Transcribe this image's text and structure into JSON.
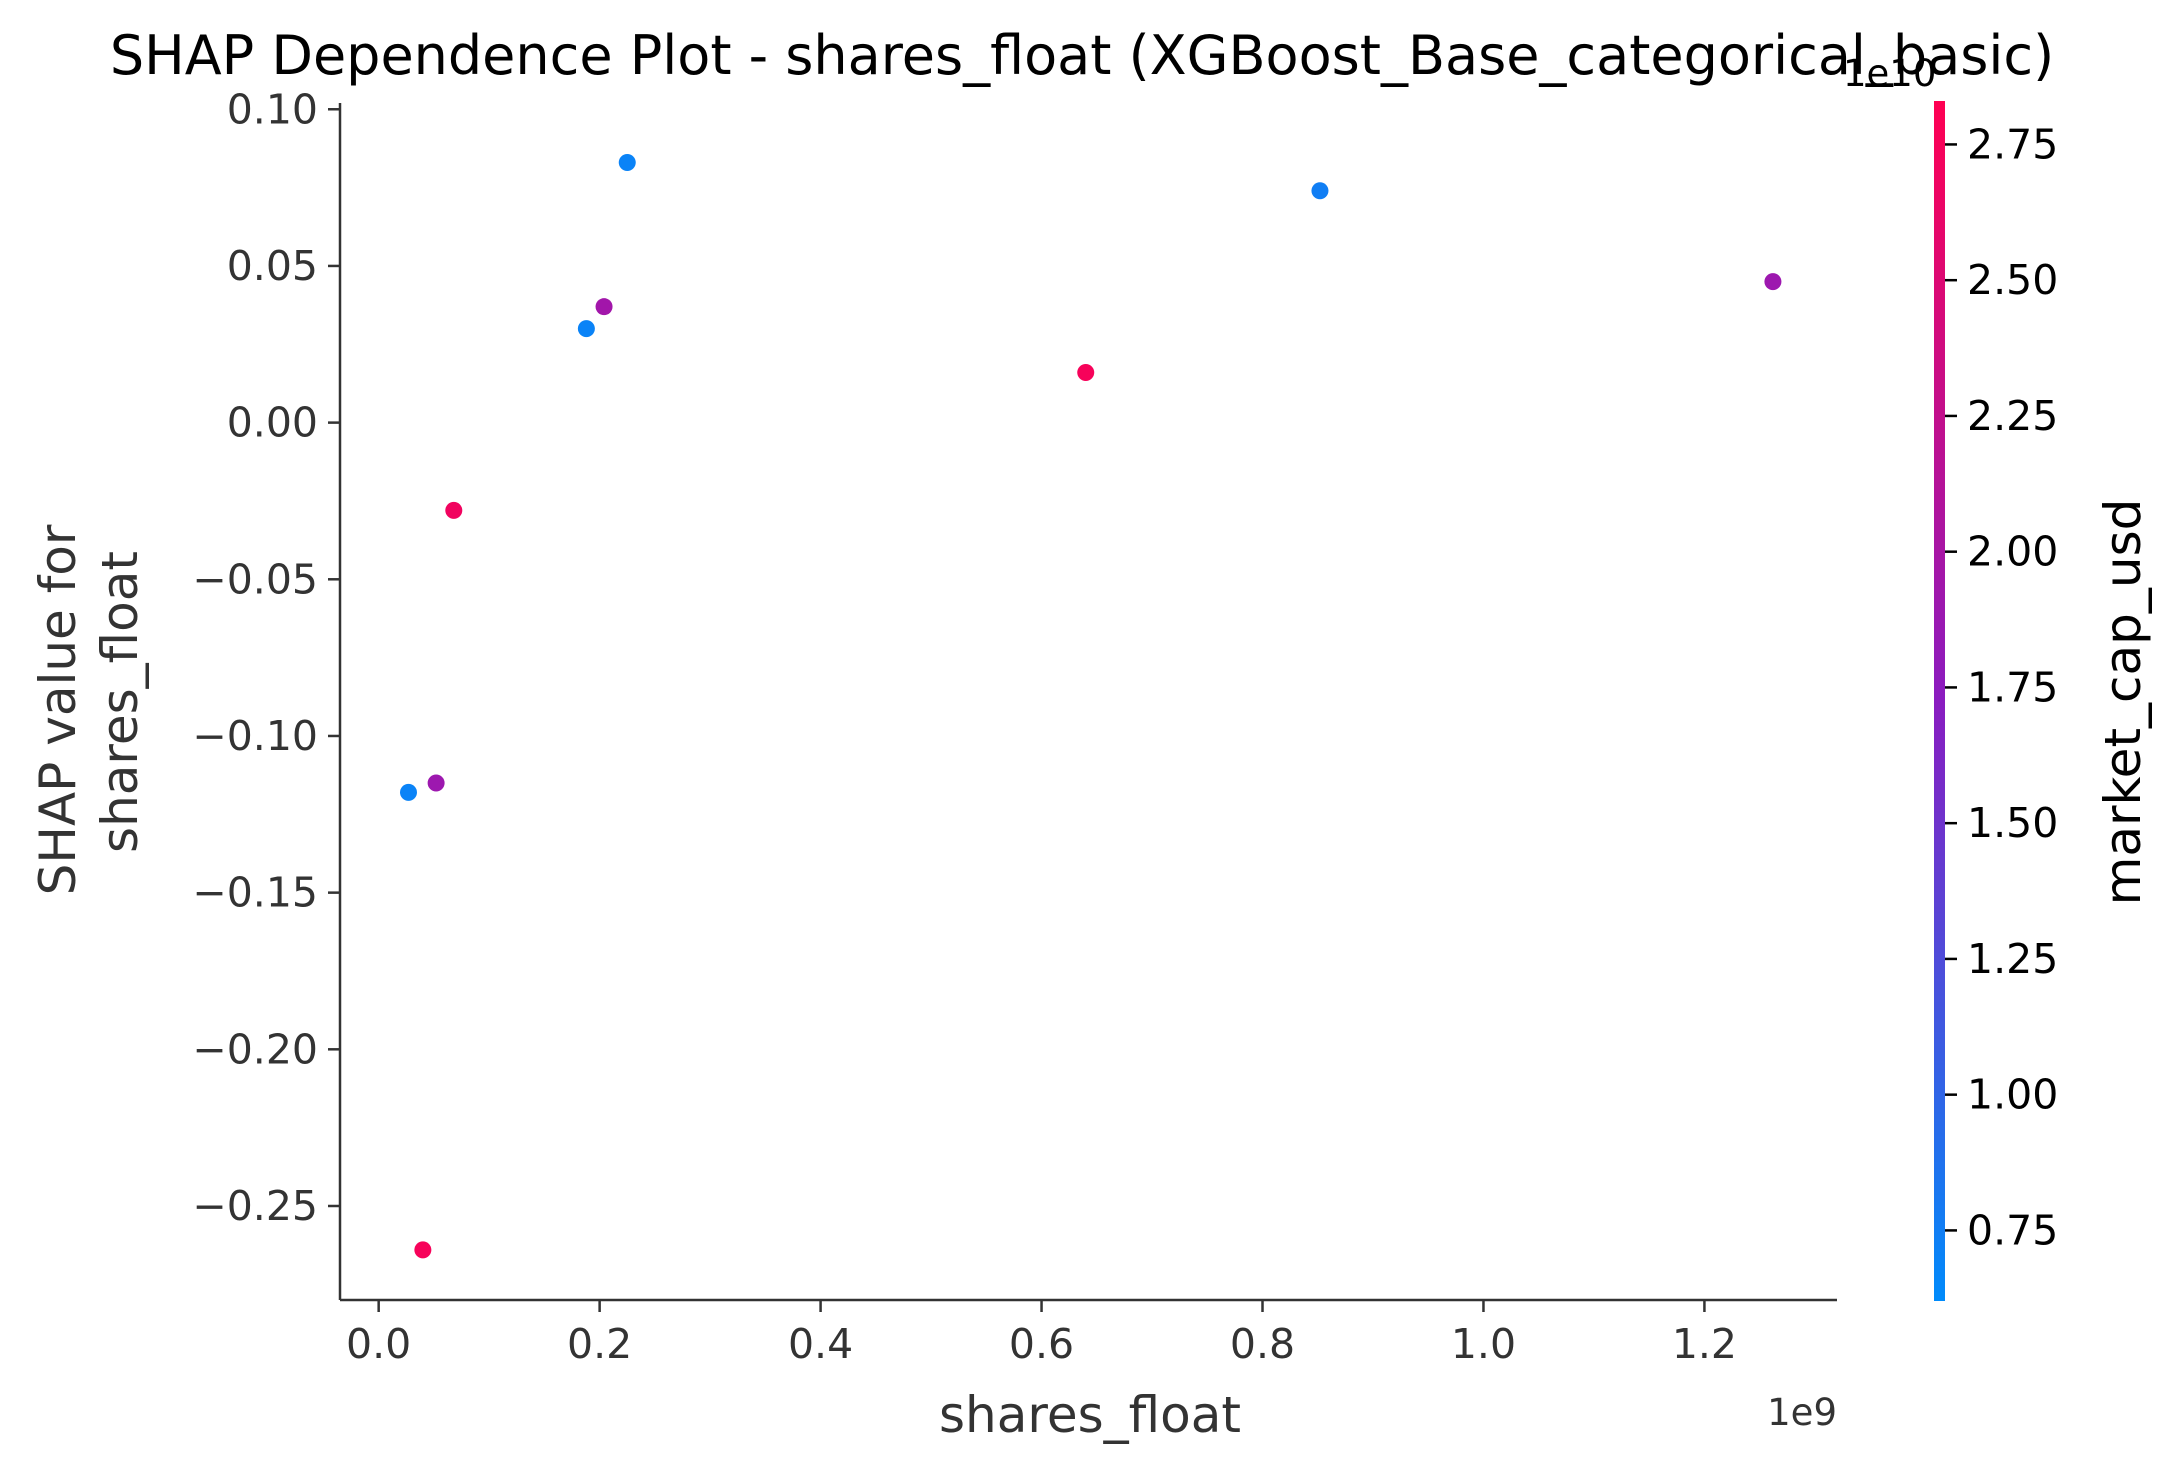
{
  "chart_data": {
    "type": "scatter",
    "title": "SHAP Dependence Plot - shares_float (XGBoost_Base_categorical_basic)",
    "xlabel": "shares_float",
    "ylabel_lines": [
      "SHAP value for",
      "shares_float"
    ],
    "x_offset_label": "1e9",
    "xlim": [
      -0.035,
      1.32
    ],
    "ylim": [
      -0.28,
      0.102
    ],
    "x_ticks": [
      0.0,
      0.2,
      0.4,
      0.6,
      0.8,
      1.0,
      1.2
    ],
    "x_tick_labels": [
      "0.0",
      "0.2",
      "0.4",
      "0.6",
      "0.8",
      "1.0",
      "1.2"
    ],
    "y_ticks": [
      0.1,
      0.05,
      0.0,
      -0.05,
      -0.1,
      -0.15,
      -0.2,
      -0.25
    ],
    "y_tick_labels": [
      "0.10",
      "0.05",
      "0.00",
      "−0.05",
      "−0.10",
      "−0.15",
      "−0.20",
      "−0.25"
    ],
    "grid": false,
    "colorbar": {
      "label": "market_cap_usd",
      "offset_label": "1e10",
      "range": [
        0.62,
        2.83
      ],
      "ticks": [
        2.75,
        2.5,
        2.25,
        2.0,
        1.75,
        1.5,
        1.25,
        1.0,
        0.75
      ],
      "tick_labels": [
        "2.75",
        "2.50",
        "2.25",
        "2.00",
        "1.75",
        "1.50",
        "1.25",
        "1.00",
        "0.75"
      ],
      "colors": [
        "#008bfb",
        "#8a1cc0",
        "#ff0052"
      ]
    },
    "points": [
      {
        "x": 0.225,
        "y": 0.083,
        "c": 0.7
      },
      {
        "x": 0.852,
        "y": 0.074,
        "c": 0.75
      },
      {
        "x": 1.262,
        "y": 0.045,
        "c": 1.9
      },
      {
        "x": 0.204,
        "y": 0.037,
        "c": 1.95
      },
      {
        "x": 0.188,
        "y": 0.03,
        "c": 0.7
      },
      {
        "x": 0.64,
        "y": 0.016,
        "c": 2.75
      },
      {
        "x": 0.068,
        "y": -0.028,
        "c": 2.7
      },
      {
        "x": 0.052,
        "y": -0.115,
        "c": 1.9
      },
      {
        "x": 0.027,
        "y": -0.118,
        "c": 0.7
      },
      {
        "x": 0.04,
        "y": -0.264,
        "c": 2.75
      }
    ]
  }
}
